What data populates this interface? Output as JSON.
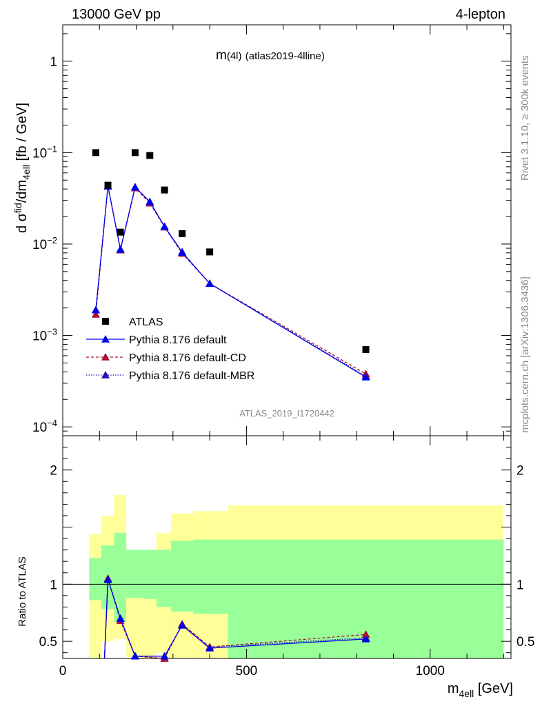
{
  "header": {
    "left": "13000 GeV pp",
    "right": "4-lepton"
  },
  "plot_title": {
    "main": "m",
    "paren": "(4l)",
    "sub": "(atlas2019-4lline)"
  },
  "side_text": {
    "rivet": "Rivet 3.1.10, ≥ 300k events",
    "mcplots": "mcplots.cern.ch [arXiv:1306.3436]"
  },
  "analysis_id": "ATLAS_2019_I1720442",
  "colors": {
    "data": "#000000",
    "default": "#0000ee",
    "cd": "#aa1133",
    "mbr": "#2211aa",
    "band_outer": "#ffff99",
    "band_inner": "#99ff99"
  },
  "chart_data": {
    "type": "scatter",
    "x_label": {
      "main": "m",
      "sub": "4ell",
      "unit": " [GeV]"
    },
    "y_label": {
      "a": "d σ",
      "b": "fid",
      "c": "/dm",
      "d": "4ell",
      "e": " [fb / GeV]"
    },
    "ratio_label": "Ratio to ATLAS",
    "xlim": [
      0,
      1220
    ],
    "ylim_main": [
      8e-05,
      2.5
    ],
    "ylim_ratio": [
      0.35,
      2.3
    ],
    "y_scale_main": "log",
    "x_ticks": [
      {
        "v": 0,
        "label": "0"
      },
      {
        "v": 500,
        "label": "500"
      },
      {
        "v": 1000,
        "label": "1000"
      }
    ],
    "y_ticks_main": [
      {
        "v": 0.0001,
        "base": "10",
        "exp": "−4"
      },
      {
        "v": 0.001,
        "base": "10",
        "exp": "−3"
      },
      {
        "v": 0.01,
        "base": "10",
        "exp": "−2"
      },
      {
        "v": 0.1,
        "base": "10",
        "exp": "−1"
      },
      {
        "v": 1,
        "base": "1",
        "exp": ""
      }
    ],
    "y_ticks_ratio": [
      {
        "v": 0.5,
        "label": "0.5"
      },
      {
        "v": 1,
        "label": "1"
      },
      {
        "v": 2,
        "label": "2"
      }
    ],
    "legend": [
      {
        "name": "ATLAS",
        "style": "data"
      },
      {
        "name": "Pythia 8.176 default",
        "style": "default"
      },
      {
        "name": "Pythia 8.176 default-CD",
        "style": "cd"
      },
      {
        "name": "Pythia 8.176 default-MBR",
        "style": "mbr"
      }
    ],
    "data": {
      "x": [
        90,
        123,
        157,
        197,
        237,
        277,
        325,
        400,
        825
      ],
      "y": [
        0.1,
        0.044,
        0.0135,
        0.1,
        0.093,
        0.039,
        0.013,
        0.0082,
        0.0007
      ]
    },
    "series": [
      {
        "name": "Pythia 8.176 default",
        "x": [
          90,
          123,
          157,
          197,
          237,
          277,
          325,
          400,
          825
        ],
        "y": [
          0.0019,
          0.043,
          0.0087,
          0.042,
          0.029,
          0.0155,
          0.0081,
          0.0037,
          0.00035
        ],
        "ratio_x": [
          123,
          157,
          197,
          277,
          325,
          400,
          825
        ],
        "ratio": [
          1.04,
          0.7,
          0.37,
          0.37,
          0.64,
          0.44,
          0.52
        ]
      },
      {
        "name": "Pythia 8.176 default-CD",
        "x": [
          90,
          123,
          157,
          197,
          237,
          277,
          325,
          400,
          825
        ],
        "y": [
          0.0017,
          0.043,
          0.0086,
          0.041,
          0.028,
          0.0153,
          0.0079,
          0.0037,
          0.00038
        ],
        "ratio_x": [
          123,
          157,
          197,
          277,
          325,
          400,
          825
        ],
        "ratio": [
          1.05,
          0.68,
          0.37,
          0.34,
          0.65,
          0.45,
          0.56
        ]
      },
      {
        "name": "Pythia 8.176 default-MBR",
        "x": [
          90,
          123,
          157,
          197,
          237,
          277,
          325,
          400,
          825
        ],
        "y": [
          0.0019,
          0.043,
          0.0088,
          0.042,
          0.029,
          0.0156,
          0.0082,
          0.0037,
          0.00036
        ],
        "ratio_x": [
          123,
          157,
          197,
          277,
          325,
          400,
          825
        ],
        "ratio": [
          1.05,
          0.7,
          0.37,
          0.35,
          0.65,
          0.45,
          0.53
        ]
      }
    ],
    "bands": [
      {
        "x0": 72,
        "x1": 105,
        "out_lo": 0.3,
        "out_hi": 1.44,
        "in_lo": 0.86,
        "in_hi": 1.23
      },
      {
        "x0": 105,
        "x1": 140,
        "out_lo": 0.5,
        "out_hi": 1.6,
        "in_lo": 0.78,
        "in_hi": 1.34
      },
      {
        "x0": 140,
        "x1": 173,
        "out_lo": 0.3,
        "out_hi": 1.78,
        "in_lo": 0.67,
        "in_hi": 1.45
      },
      {
        "x0": 173,
        "x1": 220,
        "out_lo": 0.3,
        "out_hi": 1.3,
        "in_lo": 0.3,
        "in_hi": 1.3
      },
      {
        "x0": 220,
        "x1": 255,
        "out_lo": 0.3,
        "out_hi": 1.3,
        "in_lo": 0.3,
        "in_hi": 1.3
      },
      {
        "x0": 255,
        "x1": 295,
        "out_lo": 0.3,
        "out_hi": 1.45,
        "in_lo": 0.3,
        "in_hi": 1.3
      },
      {
        "x0": 295,
        "x1": 355,
        "out_lo": 0.3,
        "out_hi": 1.62,
        "in_lo": 0.3,
        "in_hi": 1.38
      },
      {
        "x0": 355,
        "x1": 450,
        "out_lo": 0.3,
        "out_hi": 1.64,
        "in_lo": 0.3,
        "in_hi": 1.39
      },
      {
        "x0": 450,
        "x1": 1200,
        "out_lo": 0.3,
        "out_hi": 1.69,
        "in_lo": 0.3,
        "in_hi": 1.39
      }
    ],
    "band_fill": [
      {
        "x0": 173,
        "x1": 255,
        "sec_lo": 0.3,
        "sec_hi": 0.88,
        "tone": "band_outer",
        "part": "low"
      },
      {
        "x0": 173,
        "x1": 220,
        "sec_lo": 0.89,
        "sec_hi": 1.3,
        "tone": "band_inner",
        "part": "mid"
      },
      {
        "x0": 220,
        "x1": 255,
        "sec_lo": 0.87,
        "sec_hi": 1.3,
        "tone": "band_inner",
        "part": "mid"
      },
      {
        "x0": 255,
        "x1": 295,
        "sec_lo": 0.83,
        "sec_hi": 1.3,
        "tone": "band_inner",
        "part": "mid"
      },
      {
        "x0": 295,
        "x1": 355,
        "sec_lo": 0.78,
        "sec_hi": 1.38,
        "tone": "band_inner",
        "part": "mid"
      },
      {
        "x0": 355,
        "x1": 450,
        "sec_lo": 0.76,
        "sec_hi": 1.39,
        "tone": "band_inner",
        "part": "mid"
      },
      {
        "x0": 450,
        "x1": 1200,
        "sec_lo": 0.73,
        "sec_hi": 1.39,
        "tone": "band_inner",
        "part": "mid"
      }
    ]
  }
}
